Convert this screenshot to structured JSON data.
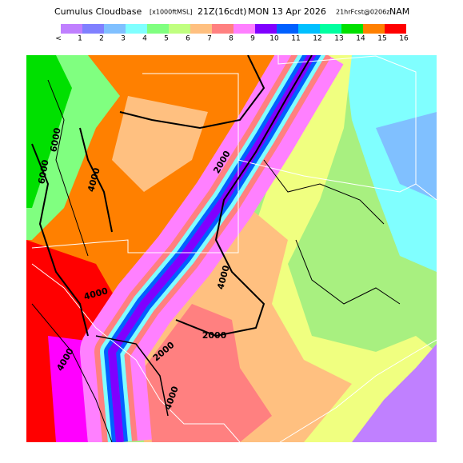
{
  "header": {
    "title": "Cumulus Cloudbase",
    "units": "[x1000ftMSL]",
    "valid_time": "21Z(16cdt)",
    "date": "MON 13 Apr 2026",
    "forecast": "21hrFcst@0206z",
    "model": "NAM"
  },
  "colorbar": {
    "labels": [
      "<",
      "1",
      "2",
      "3",
      "4",
      "5",
      "6",
      "7",
      "8",
      "9",
      "10",
      "11",
      "12",
      "13",
      "14",
      "15",
      "16"
    ],
    "colors": [
      "#c080ff",
      "#8080ff",
      "#80c0ff",
      "#80ffff",
      "#80ff80",
      "#c0ff80",
      "#ffc080",
      "#ff8080",
      "#ff80ff",
      "#8000ff",
      "#0060ff",
      "#00c0ff",
      "#00ffa0",
      "#00e000",
      "#ff8000",
      "#ff0000",
      "#ff00ff"
    ]
  },
  "contour_labels": [
    "6000",
    "6000",
    "4000",
    "2000",
    "4000",
    "4000",
    "4000",
    "2000",
    "4000",
    "2000"
  ]
}
